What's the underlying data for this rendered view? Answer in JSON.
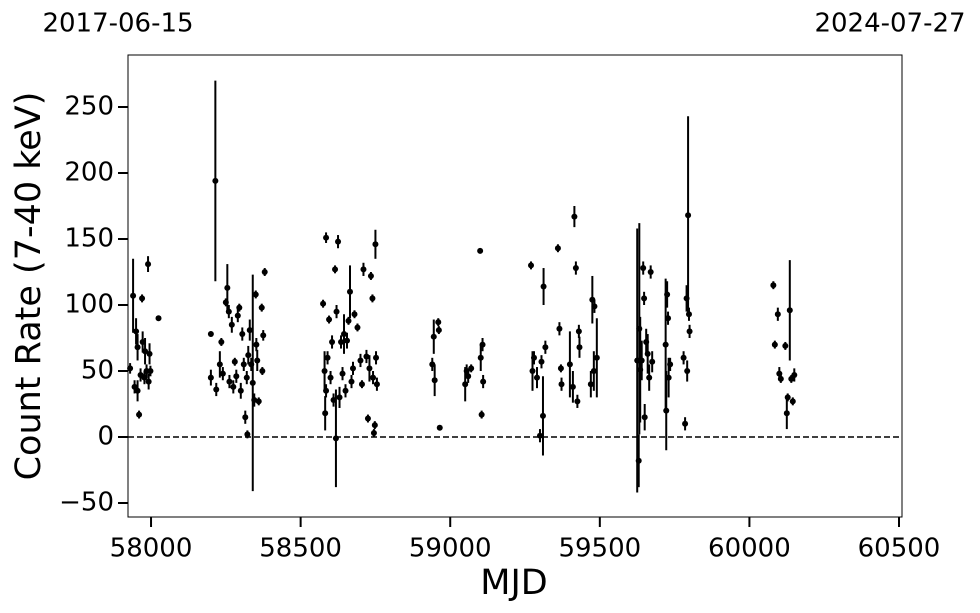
{
  "chart_data": {
    "type": "errorbar",
    "x_label": "MJD",
    "y_label": "Count Rate (7-40 keV)",
    "annotations": [
      "2017-06-15",
      "2024-07-27"
    ],
    "xlim": [
      57923,
      60510
    ],
    "ylim": [
      -60.6,
      289.4
    ],
    "xticks": [
      58000,
      58500,
      59000,
      59500,
      60000,
      60500
    ],
    "yticks": [
      {
        "value": -50,
        "label": "−50"
      },
      0,
      50,
      100,
      150,
      200,
      250
    ],
    "hline": 0,
    "color": "#000000",
    "x": [
      57930,
      57940,
      57945,
      57950,
      57955,
      57955,
      57960,
      57965,
      57970,
      57972,
      57978,
      57980,
      57985,
      57990,
      57992,
      57995,
      57998,
      58025,
      58200,
      58200,
      58215,
      58218,
      58230,
      58235,
      58240,
      58250,
      58255,
      58260,
      58262,
      58270,
      58275,
      58280,
      58285,
      58290,
      58295,
      58300,
      58305,
      58310,
      58315,
      58320,
      58322,
      58325,
      58330,
      58335,
      58340,
      58345,
      58350,
      58352,
      58355,
      58360,
      58370,
      58372,
      58375,
      58380,
      58575,
      58580,
      58582,
      58585,
      58585,
      58590,
      58595,
      58600,
      58605,
      58610,
      58615,
      58618,
      58620,
      58625,
      58630,
      58635,
      58640,
      58645,
      58650,
      58655,
      58660,
      58665,
      58670,
      58675,
      58680,
      58690,
      58700,
      58705,
      58710,
      58720,
      58725,
      58730,
      58735,
      58740,
      58742,
      58745,
      58748,
      58750,
      58752,
      58755,
      58940,
      58945,
      58948,
      58960,
      58962,
      58965,
      59050,
      59055,
      59060,
      59070,
      59100,
      59102,
      59105,
      59108,
      59110,
      59270,
      59275,
      59280,
      59290,
      59300,
      59305,
      59310,
      59312,
      59318,
      59360,
      59365,
      59370,
      59372,
      59400,
      59410,
      59415,
      59420,
      59425,
      59430,
      59432,
      59470,
      59475,
      59480,
      59482,
      59490,
      59625,
      59630,
      59632,
      59635,
      59640,
      59645,
      59648,
      59650,
      59655,
      59660,
      59665,
      59670,
      59675,
      59720,
      59722,
      59725,
      59728,
      59730,
      59735,
      59780,
      59785,
      59790,
      59792,
      59795,
      59798,
      59800,
      60080,
      60085,
      60095,
      60100,
      60105,
      60120,
      60125,
      60128,
      60135,
      60140,
      60145,
      60150
    ],
    "values": [
      52,
      107,
      38,
      80,
      68,
      35,
      17,
      47,
      105,
      72,
      45,
      65,
      50,
      131,
      42,
      63,
      50,
      90,
      78,
      45,
      194,
      36,
      55,
      72,
      48,
      102,
      113,
      95,
      42,
      85,
      38,
      57,
      46,
      92,
      98,
      35,
      78,
      55,
      15,
      45,
      2,
      62,
      81,
      55,
      41,
      28,
      108,
      70,
      58,
      27,
      98,
      50,
      77,
      125,
      101,
      50,
      18,
      35,
      151,
      60,
      89,
      45,
      72,
      28,
      127,
      -1,
      95,
      148,
      30,
      72,
      48,
      78,
      35,
      73,
      88,
      110,
      42,
      52,
      93,
      83,
      58,
      40,
      127,
      61,
      14,
      52,
      122,
      105,
      45,
      3,
      9,
      146,
      60,
      40,
      55,
      76,
      43,
      87,
      81,
      7,
      40,
      50,
      46,
      52,
      141,
      60,
      17,
      70,
      42,
      130,
      50,
      60,
      45,
      1,
      57,
      16,
      114,
      68,
      143,
      82,
      52,
      40,
      55,
      38,
      167,
      128,
      27,
      80,
      68,
      40,
      104,
      50,
      99,
      60,
      58,
      -18,
      82,
      51,
      58,
      128,
      105,
      15,
      72,
      63,
      45,
      125,
      57,
      70,
      20,
      108,
      90,
      45,
      55,
      60,
      10,
      105,
      50,
      168,
      93,
      80,
      115,
      70,
      93,
      48,
      44,
      69,
      18,
      30,
      96,
      44,
      27,
      47
    ],
    "errors": [
      4,
      28,
      5,
      10,
      10,
      8,
      3,
      5,
      3,
      8,
      5,
      10,
      5,
      6,
      6,
      8,
      4,
      2,
      2,
      6,
      76,
      5,
      10,
      3,
      5,
      3,
      18,
      5,
      5,
      6,
      5,
      3,
      5,
      5,
      3,
      6,
      5,
      5,
      5,
      5,
      3,
      7,
      8,
      5,
      82,
      5,
      3,
      5,
      8,
      3,
      3,
      3,
      4,
      3,
      3,
      15,
      13,
      5,
      4,
      5,
      3,
      5,
      5,
      5,
      3,
      37,
      5,
      5,
      8,
      5,
      5,
      15,
      5,
      6,
      3,
      20,
      5,
      5,
      3,
      3,
      5,
      3,
      5,
      5,
      3,
      10,
      3,
      3,
      5,
      3,
      3,
      11,
      5,
      5,
      5,
      13,
      12,
      3,
      3,
      2,
      13,
      5,
      5,
      3,
      2,
      10,
      3,
      5,
      5,
      3,
      15,
      5,
      8,
      5,
      5,
      30,
      14,
      5,
      3,
      5,
      3,
      5,
      25,
      12,
      8,
      5,
      5,
      5,
      8,
      10,
      18,
      15,
      5,
      30,
      100,
      20,
      80,
      40,
      15,
      5,
      5,
      10,
      10,
      15,
      10,
      5,
      8,
      50,
      30,
      10,
      5,
      15,
      5,
      5,
      5,
      10,
      8,
      75,
      5,
      5,
      3,
      3,
      5,
      5,
      3,
      3,
      12,
      3,
      38,
      3,
      3,
      5
    ]
  }
}
